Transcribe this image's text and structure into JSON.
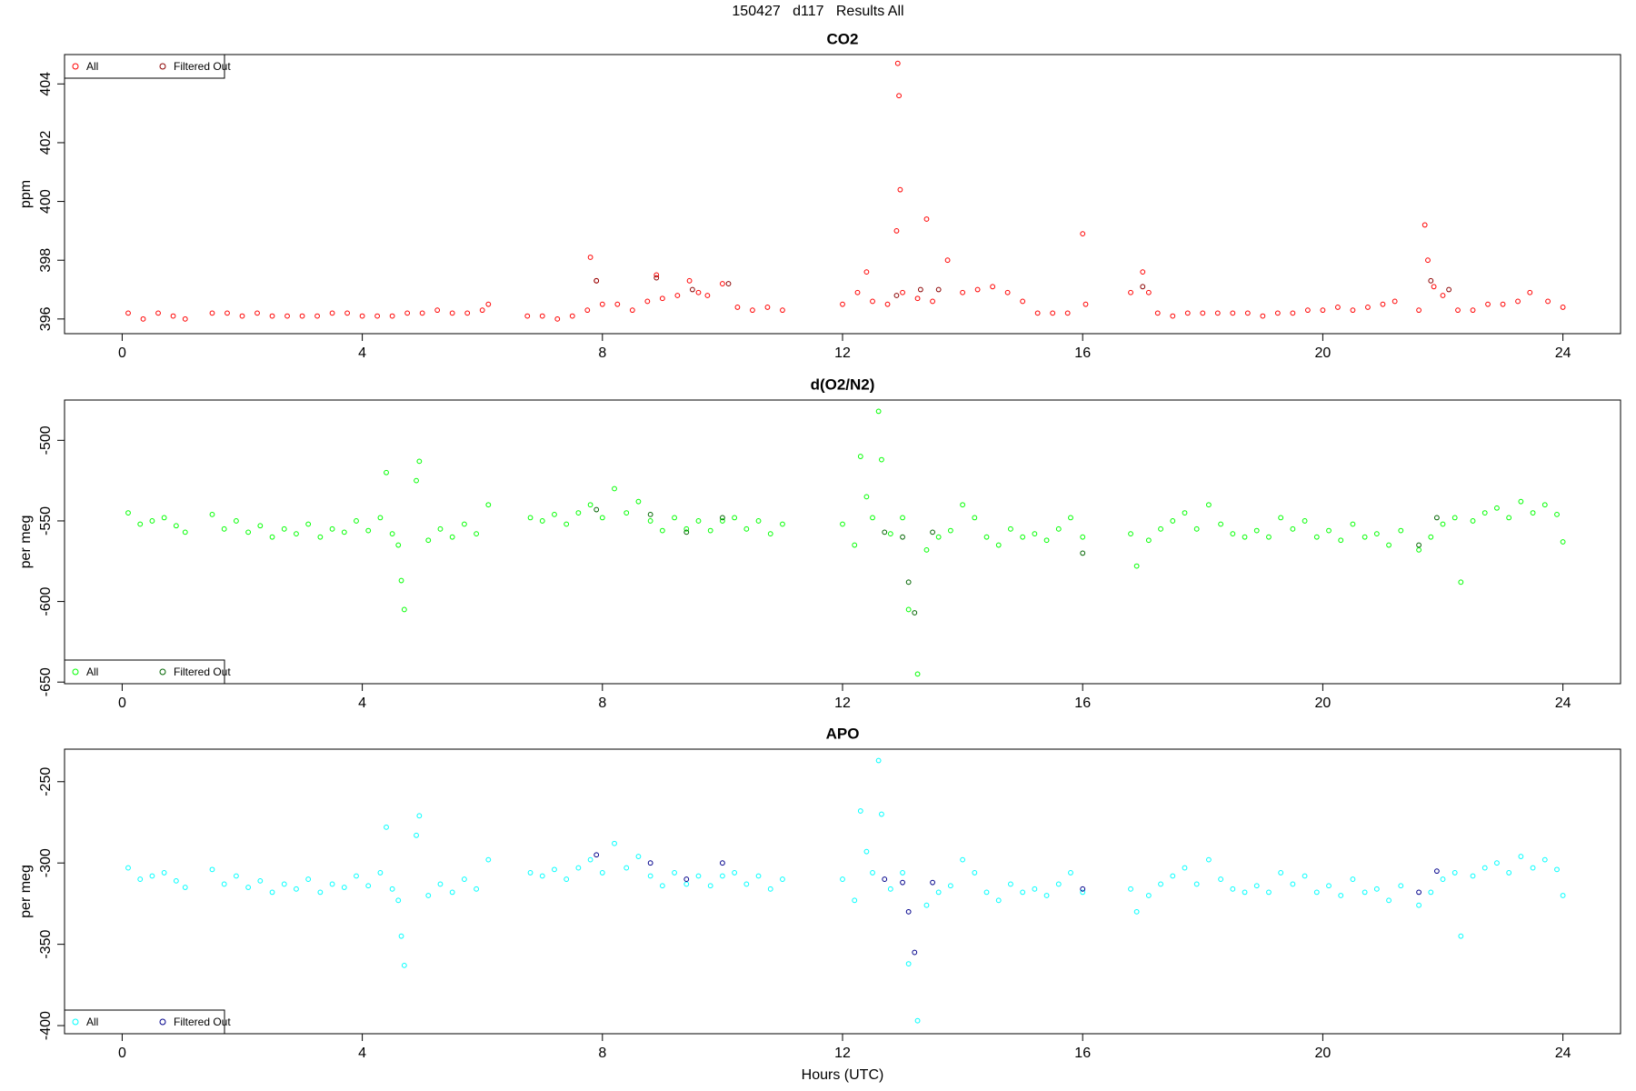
{
  "title": "150427   d117   Results All",
  "chart_data": [
    {
      "type": "scatter",
      "title": "CO2",
      "y_label": "ppm",
      "xlim": [
        -0.96,
        24.96
      ],
      "xticks": [
        0,
        4,
        8,
        12,
        16,
        20,
        24
      ],
      "ylim": [
        395.5,
        405.0
      ],
      "yticks": [
        396,
        398,
        400,
        402,
        404
      ],
      "legend": "top-left",
      "series": [
        {
          "name": "All",
          "color": "#ff0000",
          "x": [
            0.1,
            0.35,
            0.6,
            0.85,
            1.05,
            1.5,
            1.75,
            2.0,
            2.25,
            2.5,
            2.75,
            3.0,
            3.25,
            3.5,
            3.75,
            4.0,
            4.25,
            4.5,
            4.75,
            5.0,
            5.25,
            5.5,
            5.75,
            6.0,
            6.1,
            6.75,
            7.0,
            7.25,
            7.5,
            7.75,
            7.8,
            7.9,
            8.0,
            8.25,
            8.5,
            8.75,
            8.9,
            9.0,
            9.25,
            9.45,
            9.6,
            9.75,
            10.0,
            10.25,
            10.5,
            10.75,
            11.0,
            12.0,
            12.25,
            12.4,
            12.5,
            12.75,
            12.9,
            12.92,
            12.94,
            12.96,
            13.0,
            13.25,
            13.4,
            13.5,
            13.75,
            14.0,
            14.25,
            14.5,
            14.75,
            15.0,
            15.25,
            15.5,
            15.75,
            16.0,
            16.05,
            16.8,
            17.0,
            17.1,
            17.25,
            17.5,
            17.75,
            18.0,
            18.25,
            18.5,
            18.75,
            19.0,
            19.25,
            19.5,
            19.75,
            20.0,
            20.25,
            20.5,
            20.75,
            21.0,
            21.2,
            21.6,
            21.7,
            21.75,
            21.85,
            22.0,
            22.25,
            22.5,
            22.75,
            23.0,
            23.25,
            23.45,
            23.75,
            24.0
          ],
          "values": [
            396.2,
            396.0,
            396.2,
            396.1,
            396.0,
            396.2,
            396.2,
            396.1,
            396.2,
            396.1,
            396.1,
            396.1,
            396.1,
            396.2,
            396.2,
            396.1,
            396.1,
            396.1,
            396.2,
            396.2,
            396.3,
            396.2,
            396.2,
            396.3,
            396.5,
            396.1,
            396.1,
            396.0,
            396.1,
            396.3,
            398.1,
            397.3,
            396.5,
            396.5,
            396.3,
            396.6,
            397.5,
            396.7,
            396.8,
            397.3,
            396.9,
            396.8,
            397.2,
            396.4,
            396.3,
            396.4,
            396.3,
            396.5,
            396.9,
            397.6,
            396.6,
            396.5,
            399.0,
            404.7,
            403.6,
            400.4,
            396.9,
            396.7,
            399.4,
            396.6,
            398.0,
            396.9,
            397.0,
            397.1,
            396.9,
            396.6,
            396.2,
            396.2,
            396.2,
            398.9,
            396.5,
            396.9,
            397.6,
            396.9,
            396.2,
            396.1,
            396.2,
            396.2,
            396.2,
            396.2,
            396.2,
            396.1,
            396.2,
            396.2,
            396.3,
            396.3,
            396.4,
            396.3,
            396.4,
            396.5,
            396.6,
            396.3,
            399.2,
            398.0,
            397.1,
            396.8,
            396.3,
            396.3,
            396.5,
            396.5,
            396.6,
            396.9,
            396.6,
            396.4
          ]
        },
        {
          "name": "Filtered Out",
          "color": "#8b0000",
          "x": [
            7.9,
            8.9,
            9.5,
            10.1,
            12.9,
            13.3,
            13.6,
            17.0,
            21.8,
            22.1
          ],
          "values": [
            397.3,
            397.4,
            397.0,
            397.2,
            396.8,
            397.0,
            397.0,
            397.1,
            397.3,
            397.0
          ]
        }
      ]
    },
    {
      "type": "scatter",
      "title": "d(O2/N2)",
      "y_label": "per meg",
      "xlim": [
        -0.96,
        24.96
      ],
      "xticks": [
        0,
        4,
        8,
        12,
        16,
        20,
        24
      ],
      "ylim": [
        -651,
        -475
      ],
      "yticks": [
        -650,
        -600,
        -550,
        -500
      ],
      "legend": "bottom-left",
      "series": [
        {
          "name": "All",
          "color": "#00ff00",
          "x": [
            0.1,
            0.3,
            0.5,
            0.7,
            0.9,
            1.05,
            1.5,
            1.7,
            1.9,
            2.1,
            2.3,
            2.5,
            2.7,
            2.9,
            3.1,
            3.3,
            3.5,
            3.7,
            3.9,
            4.1,
            4.3,
            4.4,
            4.5,
            4.6,
            4.65,
            4.7,
            4.9,
            4.95,
            5.1,
            5.3,
            5.5,
            5.7,
            5.9,
            6.1,
            6.8,
            7.0,
            7.2,
            7.4,
            7.6,
            7.8,
            8.0,
            8.2,
            8.4,
            8.6,
            8.8,
            9.0,
            9.2,
            9.4,
            9.6,
            9.8,
            10.0,
            10.2,
            10.4,
            10.6,
            10.8,
            11.0,
            12.0,
            12.2,
            12.3,
            12.4,
            12.5,
            12.6,
            12.65,
            12.8,
            13.0,
            13.1,
            13.25,
            13.4,
            13.6,
            13.8,
            14.0,
            14.2,
            14.4,
            14.6,
            14.8,
            15.0,
            15.2,
            15.4,
            15.6,
            15.8,
            16.0,
            16.8,
            16.9,
            17.1,
            17.3,
            17.5,
            17.7,
            17.9,
            18.1,
            18.3,
            18.5,
            18.7,
            18.9,
            19.1,
            19.3,
            19.5,
            19.7,
            19.9,
            20.1,
            20.3,
            20.5,
            20.7,
            20.9,
            21.1,
            21.3,
            21.6,
            21.8,
            22.0,
            22.2,
            22.3,
            22.5,
            22.7,
            22.9,
            23.1,
            23.3,
            23.5,
            23.7,
            23.9,
            24.0
          ],
          "values": [
            -545,
            -552,
            -550,
            -548,
            -553,
            -557,
            -546,
            -555,
            -550,
            -557,
            -553,
            -560,
            -555,
            -558,
            -552,
            -560,
            -555,
            -557,
            -550,
            -556,
            -548,
            -520,
            -558,
            -565,
            -587,
            -605,
            -525,
            -513,
            -562,
            -555,
            -560,
            -552,
            -558,
            -540,
            -548,
            -550,
            -546,
            -552,
            -545,
            -540,
            -548,
            -530,
            -545,
            -538,
            -550,
            -556,
            -548,
            -555,
            -550,
            -556,
            -550,
            -548,
            -555,
            -550,
            -558,
            -552,
            -552,
            -565,
            -510,
            -535,
            -548,
            -482,
            -512,
            -558,
            -548,
            -605,
            -645,
            -568,
            -560,
            -556,
            -540,
            -548,
            -560,
            -565,
            -555,
            -560,
            -558,
            -562,
            -555,
            -548,
            -560,
            -558,
            -578,
            -562,
            -555,
            -550,
            -545,
            -555,
            -540,
            -552,
            -558,
            -560,
            -556,
            -560,
            -548,
            -555,
            -550,
            -560,
            -556,
            -562,
            -552,
            -560,
            -558,
            -565,
            -556,
            -568,
            -560,
            -552,
            -548,
            -588,
            -550,
            -545,
            -542,
            -548,
            -538,
            -545,
            -540,
            -546,
            -563
          ]
        },
        {
          "name": "Filtered Out",
          "color": "#006400",
          "x": [
            7.9,
            8.8,
            9.4,
            10.0,
            12.7,
            13.0,
            13.1,
            13.2,
            13.5,
            16.0,
            21.6,
            21.9
          ],
          "values": [
            -543,
            -546,
            -557,
            -548,
            -557,
            -560,
            -588,
            -607,
            -557,
            -570,
            -565,
            -548
          ]
        }
      ]
    },
    {
      "type": "scatter",
      "title": "APO",
      "y_label": "per meg",
      "x_label": "Hours (UTC)",
      "xlim": [
        -0.96,
        24.96
      ],
      "xticks": [
        0,
        4,
        8,
        12,
        16,
        20,
        24
      ],
      "ylim": [
        -405,
        -230
      ],
      "yticks": [
        -400,
        -350,
        -300,
        -250
      ],
      "legend": "bottom-left",
      "series": [
        {
          "name": "All",
          "color": "#00ffff",
          "x": [
            0.1,
            0.3,
            0.5,
            0.7,
            0.9,
            1.05,
            1.5,
            1.7,
            1.9,
            2.1,
            2.3,
            2.5,
            2.7,
            2.9,
            3.1,
            3.3,
            3.5,
            3.7,
            3.9,
            4.1,
            4.3,
            4.4,
            4.5,
            4.6,
            4.65,
            4.7,
            4.9,
            4.95,
            5.1,
            5.3,
            5.5,
            5.7,
            5.9,
            6.1,
            6.8,
            7.0,
            7.2,
            7.4,
            7.6,
            7.8,
            8.0,
            8.2,
            8.4,
            8.6,
            8.8,
            9.0,
            9.2,
            9.4,
            9.6,
            9.8,
            10.0,
            10.2,
            10.4,
            10.6,
            10.8,
            11.0,
            12.0,
            12.2,
            12.3,
            12.4,
            12.5,
            12.6,
            12.65,
            12.8,
            13.0,
            13.1,
            13.25,
            13.4,
            13.6,
            13.8,
            14.0,
            14.2,
            14.4,
            14.6,
            14.8,
            15.0,
            15.2,
            15.4,
            15.6,
            15.8,
            16.0,
            16.8,
            16.9,
            17.1,
            17.3,
            17.5,
            17.7,
            17.9,
            18.1,
            18.3,
            18.5,
            18.7,
            18.9,
            19.1,
            19.3,
            19.5,
            19.7,
            19.9,
            20.1,
            20.3,
            20.5,
            20.7,
            20.9,
            21.1,
            21.3,
            21.6,
            21.8,
            22.0,
            22.2,
            22.3,
            22.5,
            22.7,
            22.9,
            23.1,
            23.3,
            23.5,
            23.7,
            23.9,
            24.0
          ],
          "values": [
            -303,
            -310,
            -308,
            -306,
            -311,
            -315,
            -304,
            -313,
            -308,
            -315,
            -311,
            -318,
            -313,
            -316,
            -310,
            -318,
            -313,
            -315,
            -308,
            -314,
            -306,
            -278,
            -316,
            -323,
            -345,
            -363,
            -283,
            -271,
            -320,
            -313,
            -318,
            -310,
            -316,
            -298,
            -306,
            -308,
            -304,
            -310,
            -303,
            -298,
            -306,
            -288,
            -303,
            -296,
            -308,
            -314,
            -306,
            -313,
            -308,
            -314,
            -308,
            -306,
            -313,
            -308,
            -316,
            -310,
            -310,
            -323,
            -268,
            -293,
            -306,
            -237,
            -270,
            -316,
            -306,
            -362,
            -397,
            -326,
            -318,
            -314,
            -298,
            -306,
            -318,
            -323,
            -313,
            -318,
            -316,
            -320,
            -313,
            -306,
            -318,
            -316,
            -330,
            -320,
            -313,
            -308,
            -303,
            -313,
            -298,
            -310,
            -316,
            -318,
            -314,
            -318,
            -306,
            -313,
            -308,
            -318,
            -314,
            -320,
            -310,
            -318,
            -316,
            -323,
            -314,
            -326,
            -318,
            -310,
            -306,
            -345,
            -308,
            -303,
            -300,
            -306,
            -296,
            -303,
            -298,
            -304,
            -320
          ]
        },
        {
          "name": "Filtered Out",
          "color": "#00008b",
          "x": [
            7.9,
            8.8,
            9.4,
            10.0,
            12.7,
            13.0,
            13.1,
            13.2,
            13.5,
            16.0,
            21.6,
            21.9
          ],
          "values": [
            -295,
            -300,
            -310,
            -300,
            -310,
            -312,
            -330,
            -355,
            -312,
            -316,
            -318,
            -305
          ]
        }
      ]
    }
  ]
}
